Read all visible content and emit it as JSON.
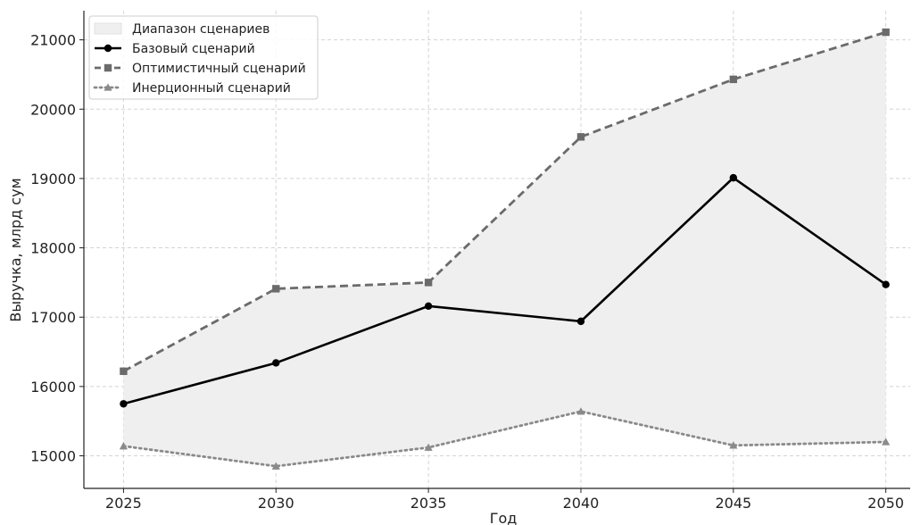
{
  "chart_data": {
    "type": "line",
    "title": "",
    "xlabel": "Год",
    "ylabel": "Выручка, млрд сум",
    "x": [
      2025,
      2030,
      2035,
      2040,
      2045,
      2050
    ],
    "xlim": [
      2023.7,
      2050.8
    ],
    "ylim": [
      14530,
      21420
    ],
    "xticks": [
      2025,
      2030,
      2035,
      2040,
      2045,
      2050
    ],
    "yticks": [
      15000,
      16000,
      17000,
      18000,
      19000,
      20000,
      21000
    ],
    "grid": true,
    "legend_position": "top-left",
    "band": {
      "name": "Диапазон сценариев",
      "color": "#efefef"
    },
    "series": [
      {
        "name": "Базовый сценарий",
        "values": [
          15750,
          16340,
          17160,
          16940,
          19010,
          17470
        ],
        "color": "#000000",
        "line": "solid",
        "marker": "circle"
      },
      {
        "name": "Оптимистичный сценарий",
        "values": [
          16220,
          17410,
          17500,
          19600,
          20430,
          21110
        ],
        "color": "#6b6b6b",
        "line": "dashed",
        "marker": "square"
      },
      {
        "name": "Инерционный сценарий",
        "values": [
          15140,
          14850,
          15120,
          15640,
          15150,
          15200
        ],
        "color": "#8a8a8a",
        "line": "dotted",
        "marker": "triangle"
      }
    ]
  }
}
